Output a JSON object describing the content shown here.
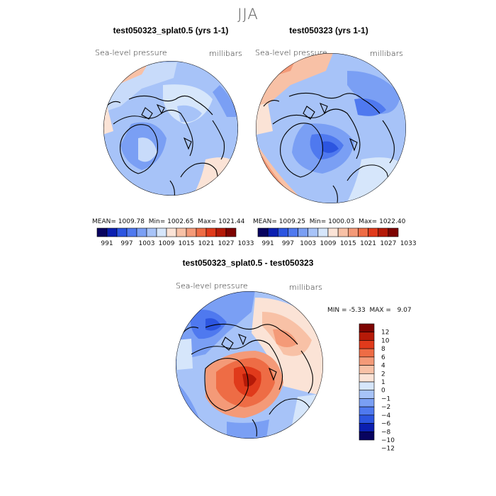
{
  "season": "JJA",
  "palettes": {
    "absolute": [
      "#08035f",
      "#0b1fb0",
      "#2c55e0",
      "#4f79ef",
      "#7a9ff4",
      "#a7c3f8",
      "#d6e6fb",
      "#fbe3d6",
      "#f8c1a6",
      "#f49a78",
      "#ee6c45",
      "#e03a1b",
      "#b51a08",
      "#7e0402"
    ],
    "difference": [
      "#7e0402",
      "#b51a08",
      "#e03a1b",
      "#ee6c45",
      "#f49a78",
      "#f8c1a6",
      "#fbe3d6",
      "#d6e6fb",
      "#a7c3f8",
      "#7a9ff4",
      "#4f79ef",
      "#2c55e0",
      "#0b1fb0",
      "#08035f"
    ]
  },
  "panels": [
    {
      "title": "test050323_splat0.5 (yrs 1-1)",
      "variable": "Sea-level pressure",
      "units": "millibars",
      "mean_label": "MEAN=",
      "mean": "1009.78",
      "min_label": "Min=",
      "min": "1002.65",
      "max_label": "Max=",
      "max": "1021.44",
      "colorbar_ticks": [
        "991",
        "997",
        "1003",
        "1009",
        "1015",
        "1021",
        "1027",
        "1033"
      ]
    },
    {
      "title": "test050323 (yrs 1-1)",
      "variable": "Sea-level pressure",
      "units": "millibars",
      "mean_label": "MEAN=",
      "mean": "1009.25",
      "min_label": "Min=",
      "min": "1000.03",
      "max_label": "Max=",
      "max": "1022.40",
      "colorbar_ticks": [
        "991",
        "997",
        "1003",
        "1009",
        "1015",
        "1021",
        "1027",
        "1033"
      ]
    }
  ],
  "difference": {
    "title": "test050323_splat0.5 - test050323",
    "variable": "Sea-level pressure",
    "units": "millibars",
    "min_label": "MIN =",
    "min": "-5.33",
    "max_label": "MAX =",
    "max": "9.07",
    "colorbar_ticks": [
      "12",
      "10",
      "8",
      "6",
      "4",
      "2",
      "1",
      "0",
      "−1",
      "−2",
      "−4",
      "−6",
      "−8",
      "−10",
      "−12"
    ]
  },
  "chart_data": [
    {
      "type": "heatmap",
      "projection": "north-polar-stereographic",
      "title": "test050323_splat0.5 (yrs 1-1)",
      "variable": "Sea-level pressure",
      "units": "millibars",
      "mean": 1009.78,
      "min": 1002.65,
      "max": 1021.44,
      "colorbar_levels": [
        991,
        997,
        1003,
        1009,
        1015,
        1021,
        1027,
        1033
      ]
    },
    {
      "type": "heatmap",
      "projection": "north-polar-stereographic",
      "title": "test050323 (yrs 1-1)",
      "variable": "Sea-level pressure",
      "units": "millibars",
      "mean": 1009.25,
      "min": 1000.03,
      "max": 1022.4,
      "colorbar_levels": [
        991,
        997,
        1003,
        1009,
        1015,
        1021,
        1027,
        1033
      ]
    },
    {
      "type": "heatmap",
      "projection": "north-polar-stereographic",
      "title": "test050323_splat0.5 - test050323",
      "variable": "Sea-level pressure",
      "units": "millibars",
      "min": -5.33,
      "max": 9.07,
      "colorbar_levels": [
        12,
        10,
        8,
        6,
        4,
        2,
        1,
        0,
        -1,
        -2,
        -4,
        -6,
        -8,
        -10,
        -12
      ]
    }
  ]
}
